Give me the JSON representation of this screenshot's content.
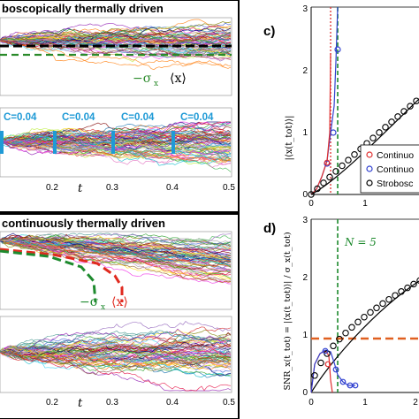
{
  "panels": {
    "top_left_title": "boscopically thermally driven",
    "bottom_left_title": "continuously thermally driven",
    "c_label": "c)",
    "d_label": "d)"
  },
  "top_left": {
    "sigma_label": "−σ",
    "sigma_sub": "x",
    "mean_label": "⟨x⟩",
    "c_labels": [
      "C=0.04",
      "C=0.04",
      "C=0.04",
      "C=0.04"
    ],
    "xticks": [
      "0.2",
      "0.3",
      "0.4",
      "0.5"
    ],
    "xlabel": "t",
    "colors": {
      "dashed_mean": "#000000",
      "dashed_sigma": "#2a8a2a",
      "c_text": "#1f9ad6"
    }
  },
  "bottom_left": {
    "sigma_label": "−σ",
    "sigma_sub": "x",
    "mean_label": "⟨x⟩",
    "xticks": [
      "0.2",
      "0.3",
      "0.4",
      "0.5"
    ],
    "xlabel": "t",
    "colors": {
      "dashed_red": "#e02a1f",
      "dashed_green": "#1e8a2e"
    }
  },
  "panel_c": {
    "ylabel": "|⟨x(t_tot)⟩|",
    "yticks": [
      "0",
      "1",
      "2",
      "3"
    ],
    "xticks": [
      "0",
      "1"
    ],
    "legend": [
      "Continuo",
      "Continuo",
      "Strobosc"
    ],
    "legend_colors": [
      "#e03030",
      "#3040d0",
      "#000000"
    ]
  },
  "panel_d": {
    "ylabel": "SNR_x(t_tot) = |⟨x(t_tot)⟩| / σ_x(t_tot)",
    "yticks": [
      "0",
      "1",
      "2",
      "3"
    ],
    "xticks": [
      "0",
      "1",
      "2"
    ],
    "n_label": "N = 5",
    "colors": {
      "threshold": "#e06020",
      "n_line": "#1e8a2e"
    }
  }
}
